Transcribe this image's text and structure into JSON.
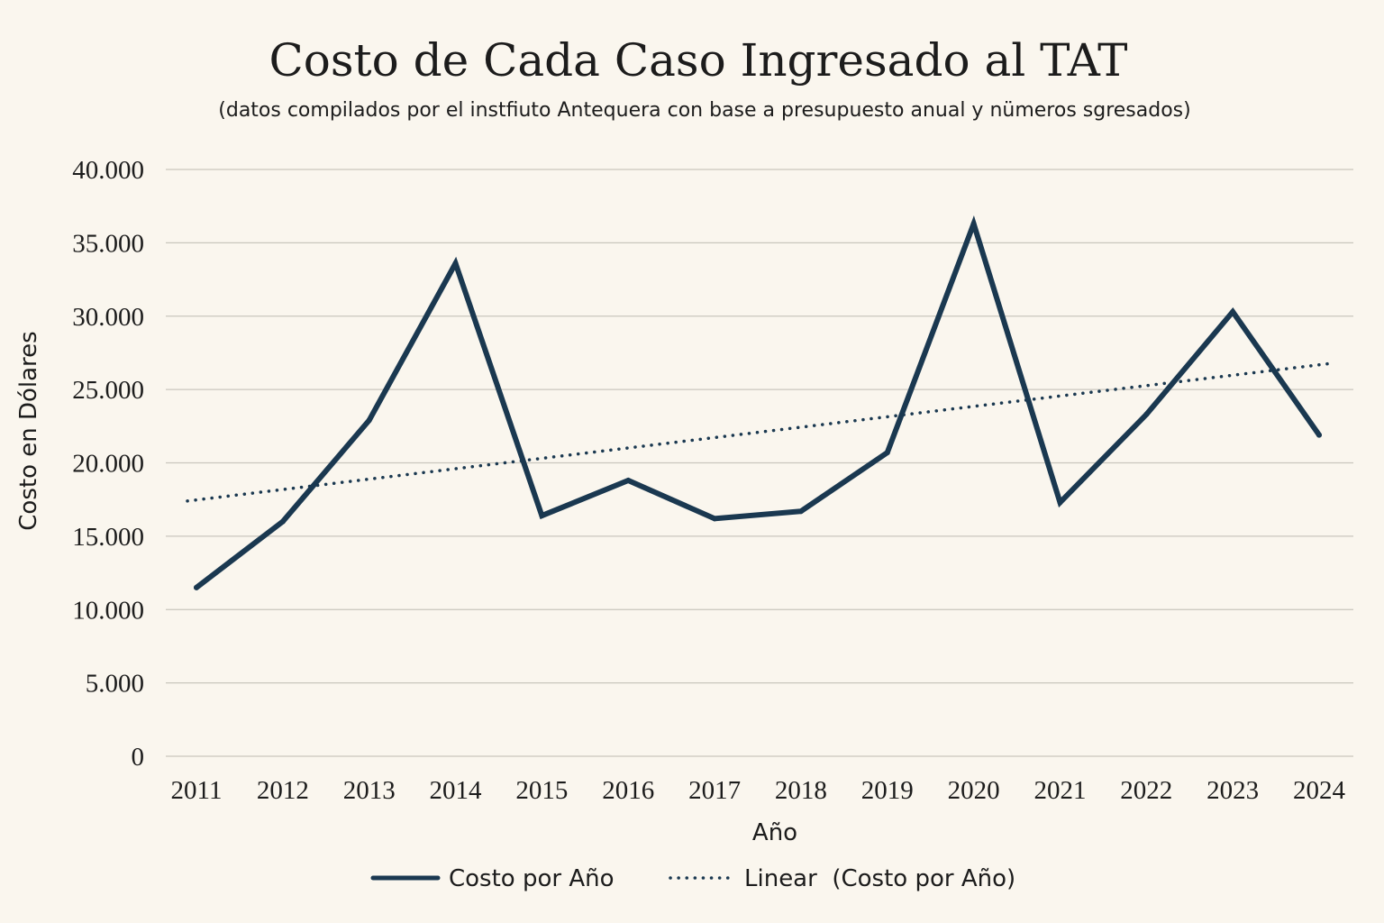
{
  "chart_data": {
    "type": "line",
    "title": "Costo de Cada Caso Ingresado al TAT",
    "subtitle": "(datos compilados por el instfiuto Antequera con base a presupuesto anual y nümeros sgresados)",
    "xlabel": "Año",
    "ylabel": "Costo en Dólares",
    "categories": [
      "2011",
      "2012",
      "2013",
      "2014",
      "2015",
      "2016",
      "2017",
      "2018",
      "2019",
      "2020",
      "2021",
      "2022",
      "2023",
      "2024"
    ],
    "ylim": [
      0,
      40000
    ],
    "yticks": [
      0,
      5000,
      10000,
      15000,
      20000,
      25000,
      30000,
      35000,
      40000
    ],
    "ytick_labels": [
      "0",
      "5.000",
      "10.000",
      "15.000",
      "20.000",
      "25.000",
      "30.000",
      "35.000",
      "40.000"
    ],
    "grid": true,
    "legend_position": "bottom-center",
    "series": [
      {
        "name": "Costo por Año",
        "style": "solid",
        "color": "#1a3850",
        "values": [
          11500,
          16000,
          22900,
          33600,
          16400,
          18800,
          16200,
          16700,
          20700,
          36300,
          17300,
          23300,
          30300,
          21900
        ]
      },
      {
        "name": "Linear  (Costo por Año)",
        "style": "dotted",
        "color": "#1a3850",
        "start": 17400,
        "end": 26800
      }
    ]
  }
}
